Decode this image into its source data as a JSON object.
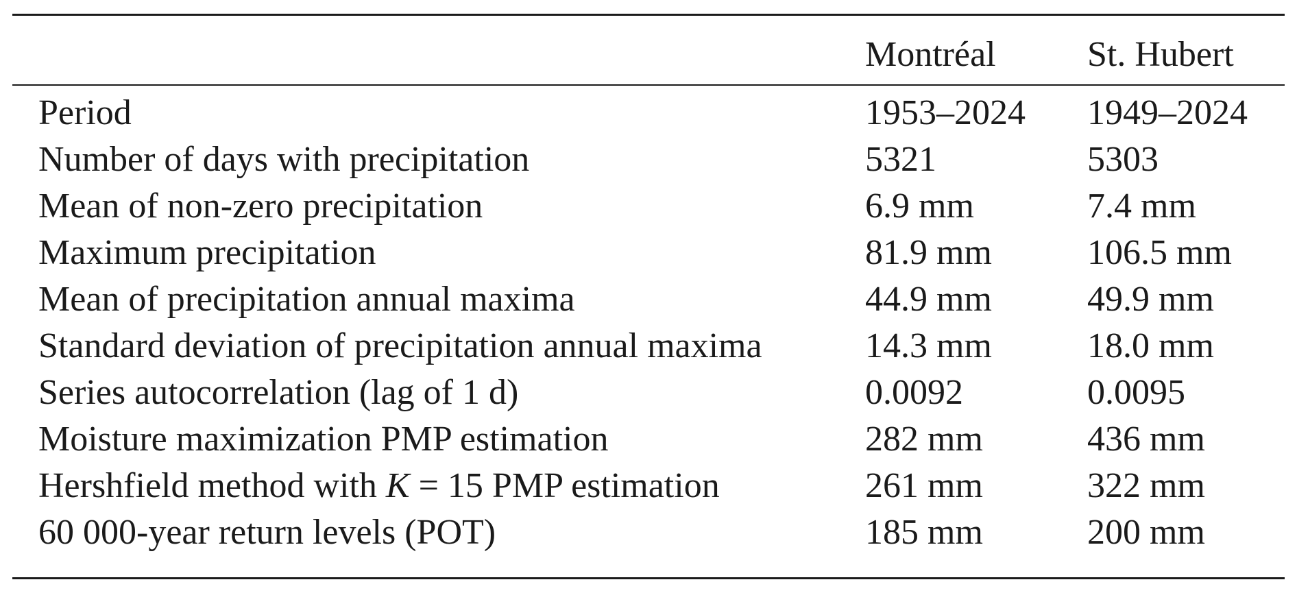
{
  "table": {
    "headers": [
      "",
      "Montréal",
      "St. Hubert"
    ],
    "rows": [
      {
        "label": "Period",
        "montreal": "1953–2024",
        "st_hubert": "1949–2024"
      },
      {
        "label": "Number of days with precipitation",
        "montreal": "5321",
        "st_hubert": "5303"
      },
      {
        "label": "Mean of non-zero precipitation",
        "montreal": "6.9 mm",
        "st_hubert": "7.4 mm"
      },
      {
        "label": "Maximum precipitation",
        "montreal": "81.9 mm",
        "st_hubert": "106.5 mm"
      },
      {
        "label": "Mean of precipitation annual maxima",
        "montreal": "44.9 mm",
        "st_hubert": "49.9 mm"
      },
      {
        "label": "Standard deviation of precipitation annual maxima",
        "montreal": "14.3 mm",
        "st_hubert": "18.0 mm"
      },
      {
        "label": "Series autocorrelation (lag of 1 d)",
        "montreal": "0.0092",
        "st_hubert": "0.0095"
      },
      {
        "label": "Moisture maximization PMP estimation",
        "montreal": "282 mm",
        "st_hubert": "436 mm"
      },
      {
        "label_pre": "Hershfield method with ",
        "label_var": "K",
        "label_post": " = 15 PMP estimation",
        "montreal": "261 mm",
        "st_hubert": "322 mm"
      },
      {
        "label": "60 000-year return levels (POT)",
        "montreal": "185 mm",
        "st_hubert": "200 mm"
      }
    ]
  }
}
